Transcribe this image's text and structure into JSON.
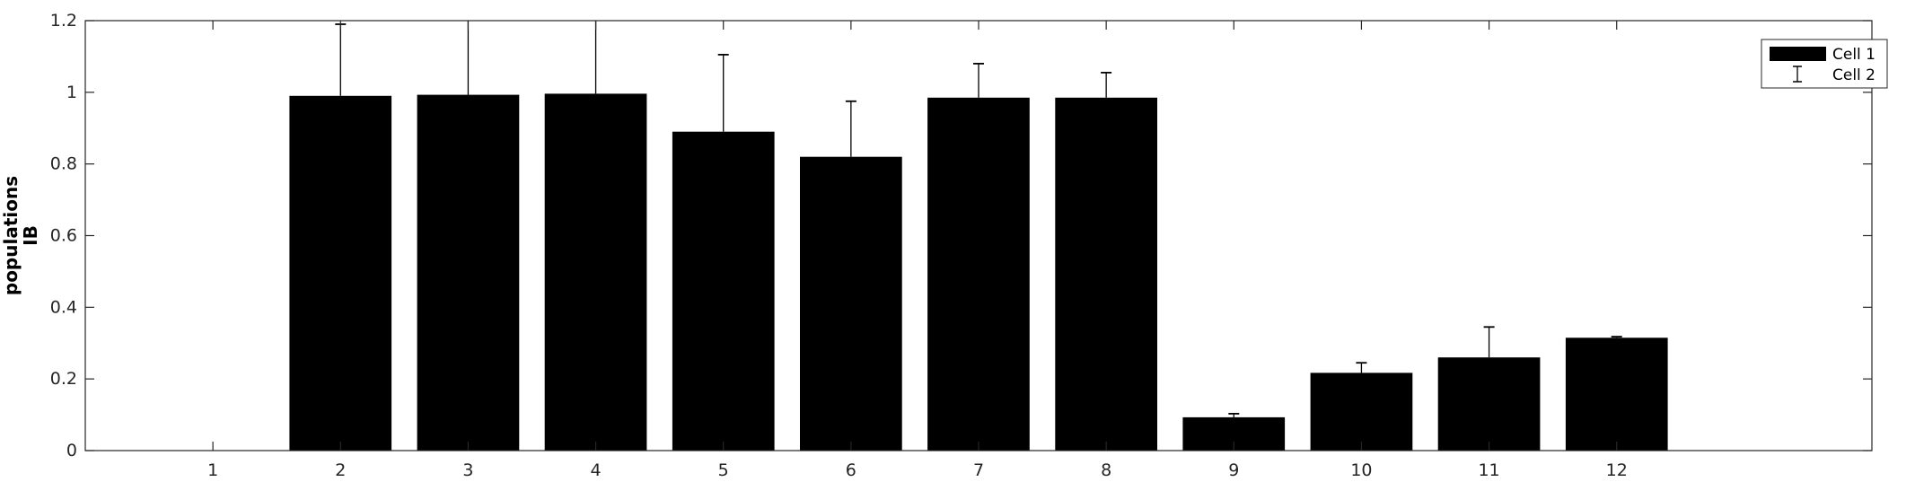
{
  "chart_data": {
    "type": "bar",
    "title": "",
    "xlabel": "",
    "ylabel_lines": [
      "populations",
      "IB"
    ],
    "categories": [
      "1",
      "2",
      "3",
      "4",
      "5",
      "6",
      "7",
      "8",
      "9",
      "10",
      "11",
      "12"
    ],
    "ylim": [
      0,
      1.2
    ],
    "xlim": [
      0,
      14
    ],
    "yticks": [
      0,
      0.2,
      0.4,
      0.6,
      0.8,
      1,
      1.2
    ],
    "ytick_labels": [
      "0",
      "0.2",
      "0.4",
      "0.6",
      "0.8",
      "1",
      "1.2"
    ],
    "series": [
      {
        "name": "Cell 1",
        "kind": "bar",
        "color": "#000000",
        "values": [
          0,
          0.99,
          0.993,
          0.996,
          0.89,
          0.82,
          0.985,
          0.985,
          0.093,
          0.217,
          0.26,
          0.315
        ]
      },
      {
        "name": "Cell 2",
        "kind": "errorbar",
        "color": "#000000",
        "values": [
          0,
          1.19,
          1.29,
          1.28,
          1.105,
          0.975,
          1.08,
          1.055,
          0.103,
          0.245,
          0.345,
          0.318
        ]
      }
    ],
    "grid": false,
    "legend_position": "top-right"
  }
}
